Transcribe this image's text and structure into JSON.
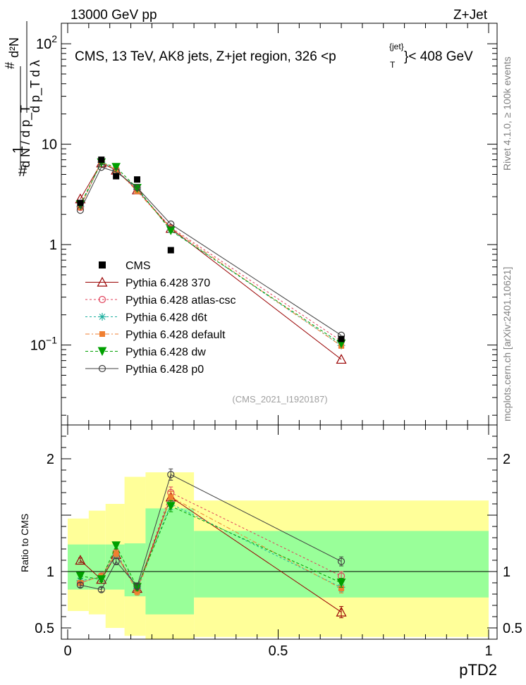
{
  "header": {
    "left": "13000 GeV pp",
    "right": "Z+Jet"
  },
  "side_texts": {
    "rivet": "Rivet 4.1.0, ≥ 100k events",
    "mcplots": "mcplots.cern.ch [arXiv:2401.10621]"
  },
  "chart_data": {
    "type": "line",
    "title": "CMS, 13 TeV, AK8 jets, Z+jet region, 326 <p_T^{jet}< 408 GeV",
    "title_parts": {
      "main": "CMS, 13 TeV, AK8 jets, Z+jet region, 326 <p",
      "sup": "{jet}",
      "sub": "T",
      "tail": "}< 408 GeV"
    },
    "watermark": "(CMS_2021_I1920187)",
    "xlabel": "pTD2",
    "ylabel_parts": {
      "frac_top": "d²N",
      "frac_mid": "d p_T d λ",
      "prefix": "1",
      "den": "d N / d p_T",
      "hash": "#"
    },
    "ratio_ylabel": "Ratio to CMS",
    "xlim": [
      0,
      1
    ],
    "main_ylim": [
      0.016,
      160
    ],
    "ratio_ylim": [
      0.4,
      2.3
    ],
    "x_ticks": [
      0,
      0.5,
      1
    ],
    "x_tick_labels": [
      "0",
      "0.5",
      "1"
    ],
    "main_y_ticks": [
      0.1,
      1,
      10,
      100
    ],
    "main_y_tick_labels": [
      "10^-1",
      "1",
      "10",
      "10^2"
    ],
    "ratio_y_ticks": [
      0.5,
      1,
      2
    ],
    "ratio_y_tick_labels": [
      "0.5",
      "1",
      "2"
    ],
    "x": [
      0.03,
      0.08,
      0.115,
      0.165,
      0.245,
      0.65
    ],
    "cms": [
      2.6,
      7.0,
      4.8,
      4.45,
      0.88,
      0.115
    ],
    "band_edges": [
      0.0,
      0.05,
      0.09,
      0.135,
      0.185,
      0.3,
      1.0
    ],
    "green_band": [
      [
        0.84,
        1.24
      ],
      [
        0.84,
        1.24
      ],
      [
        0.84,
        1.24
      ],
      [
        0.78,
        1.25
      ],
      [
        0.62,
        1.56
      ],
      [
        0.77,
        1.36
      ]
    ],
    "yellow_band": [
      [
        0.65,
        1.47
      ],
      [
        0.62,
        1.54
      ],
      [
        0.5,
        1.6
      ],
      [
        0.43,
        1.84
      ],
      [
        0.28,
        1.88
      ],
      [
        0.42,
        1.63
      ]
    ],
    "series": [
      {
        "name": "Pythia 6.428 370",
        "color": "#990000",
        "dash": "",
        "marker": "triangle-open",
        "values": [
          2.85,
          6.5,
          5.5,
          3.5,
          1.45,
          0.072
        ],
        "ratio": [
          1.1,
          0.93,
          1.15,
          0.85,
          1.66,
          0.64
        ],
        "ratio_err": [
          0.02,
          0.02,
          0.03,
          0.03,
          0.05,
          0.05
        ]
      },
      {
        "name": "Pythia 6.428 atlas-csc",
        "color": "#e0405a",
        "dash": "3,3",
        "marker": "circle-open",
        "values": [
          2.35,
          6.7,
          5.6,
          3.5,
          1.48,
          0.11
        ],
        "ratio": [
          0.9,
          0.96,
          1.17,
          0.84,
          1.7,
          0.96
        ],
        "ratio_err": [
          0.02,
          0.02,
          0.03,
          0.03,
          0.05,
          0.04
        ]
      },
      {
        "name": "Pythia 6.428 d6t",
        "color": "#20b0a0",
        "dash": "3,3",
        "marker": "star",
        "values": [
          2.4,
          6.6,
          5.5,
          3.55,
          1.4,
          0.099
        ],
        "ratio": [
          0.92,
          0.95,
          1.15,
          0.85,
          1.6,
          0.86
        ],
        "ratio_err": [
          0.02,
          0.02,
          0.03,
          0.03,
          0.05,
          0.04
        ]
      },
      {
        "name": "Pythia 6.428 default",
        "color": "#f07f30",
        "dash": "6,3,2,3",
        "marker": "square-filled",
        "values": [
          2.35,
          6.75,
          5.55,
          3.4,
          1.45,
          0.098
        ],
        "ratio": [
          0.9,
          0.96,
          1.16,
          0.82,
          1.66,
          0.85
        ],
        "ratio_err": [
          0.02,
          0.02,
          0.03,
          0.03,
          0.05,
          0.04
        ]
      },
      {
        "name": "Pythia 6.428 dw",
        "color": "#00a000",
        "dash": "4,3",
        "marker": "triangle-down-filled",
        "values": [
          2.5,
          6.55,
          5.9,
          3.65,
          1.38,
          0.103
        ],
        "ratio": [
          0.96,
          0.93,
          1.23,
          0.86,
          1.58,
          0.9
        ],
        "ratio_err": [
          0.02,
          0.02,
          0.03,
          0.03,
          0.05,
          0.04
        ]
      },
      {
        "name": "Pythia 6.428 p0",
        "color": "#404040",
        "dash": "",
        "marker": "circle-open",
        "values": [
          2.2,
          5.9,
          5.3,
          3.7,
          1.6,
          0.125
        ],
        "ratio": [
          0.88,
          0.84,
          1.09,
          0.87,
          1.86,
          1.09
        ],
        "ratio_err": [
          0.02,
          0.02,
          0.03,
          0.03,
          0.05,
          0.04
        ]
      }
    ],
    "legend": {
      "data_label": "CMS",
      "placement": "lower-left"
    }
  }
}
